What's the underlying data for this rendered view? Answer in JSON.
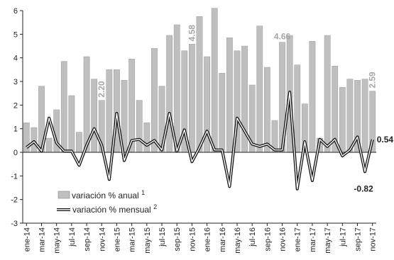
{
  "chart_data": {
    "type": "bar+line",
    "categories": [
      "ene-14",
      "feb-14",
      "mar-14",
      "abr-14",
      "may-14",
      "jun-14",
      "jul-14",
      "ago-14",
      "sep-14",
      "oct-14",
      "nov-14",
      "dic-14",
      "ene-15",
      "feb-15",
      "mar-15",
      "abr-15",
      "may-15",
      "jun-15",
      "jul-15",
      "ago-15",
      "sep-15",
      "oct-15",
      "nov-15",
      "dic-15",
      "ene-16",
      "feb-16",
      "mar-16",
      "abr-16",
      "may-16",
      "jun-16",
      "jul-16",
      "ago-16",
      "sep-16",
      "oct-16",
      "nov-16",
      "dic-16",
      "ene-17",
      "feb-17",
      "mar-17",
      "abr-17",
      "may-17",
      "jun-17",
      "jul-17",
      "ago-17",
      "sep-17",
      "oct-17",
      "nov-17"
    ],
    "xtick_labels": [
      "ene-14",
      "mar-14",
      "may-14",
      "jul-14",
      "sep-14",
      "nov-14",
      "ene-15",
      "mar-15",
      "may-15",
      "jul-15",
      "sep-15",
      "nov-15",
      "ene-16",
      "mar-16",
      "may-16",
      "jul-16",
      "sep-16",
      "nov-16",
      "ene-17",
      "mar-17",
      "may-17",
      "jul-17",
      "sep-17",
      "nov-17"
    ],
    "ylim": [
      -3,
      6
    ],
    "yticks": [
      "-3",
      "-2",
      "-1",
      "0",
      "1",
      "2",
      "3",
      "4",
      "5",
      "6"
    ],
    "series": [
      {
        "name": "variación % anual",
        "superscript": "1",
        "kind": "bar",
        "color": "#bfbfbf",
        "values": [
          1.25,
          1.05,
          2.8,
          0.6,
          1.8,
          3.85,
          2.4,
          0.85,
          4.05,
          3.1,
          2.2,
          3.5,
          3.5,
          3.05,
          3.95,
          2.2,
          1.25,
          4.4,
          2.8,
          4.95,
          5.4,
          4.3,
          4.58,
          5.75,
          4.05,
          6.1,
          3.35,
          4.85,
          4.3,
          4.5,
          2.85,
          5.35,
          3.6,
          1.35,
          4.66,
          4.95,
          3.7,
          2.05,
          4.7,
          0.6,
          4.95,
          3.65,
          2.75,
          3.1,
          3.05,
          3.1,
          2.59
        ]
      },
      {
        "name": "variación % mensual",
        "superscript": "2",
        "kind": "line",
        "color": "#111111",
        "values": [
          0.2,
          0.45,
          0.05,
          1.45,
          0.4,
          0.05,
          0.05,
          -0.55,
          0.3,
          1.0,
          0.3,
          -1.15,
          1.65,
          -0.35,
          0.5,
          0.55,
          0.3,
          0.5,
          0.1,
          1.65,
          0.05,
          0.95,
          -0.4,
          0.2,
          0.9,
          0.1,
          0.1,
          -1.45,
          1.45,
          0.9,
          0.35,
          0.25,
          0.35,
          0.1,
          0.1,
          2.55,
          -1.55,
          0.45,
          -1.2,
          0.55,
          0.25,
          0.55,
          -0.15,
          0.1,
          0.65,
          -0.82,
          0.54
        ]
      }
    ],
    "annotations": [
      {
        "text": "2.20",
        "series": 0,
        "index": 10,
        "style": "gray-vertical"
      },
      {
        "text": "4.58",
        "series": 0,
        "index": 22,
        "style": "gray-vertical"
      },
      {
        "text": "4.66",
        "series": 0,
        "index": 34,
        "style": "gray-horizontal"
      },
      {
        "text": "2.59",
        "series": 0,
        "index": 46,
        "style": "gray-vertical"
      },
      {
        "text": "0.54",
        "series": 1,
        "index": 46,
        "style": "dark-right"
      },
      {
        "text": "-0.82",
        "series": 1,
        "index": 45,
        "style": "dark-below"
      }
    ],
    "legend": {
      "placement": "bottom-left"
    },
    "grid": false
  }
}
